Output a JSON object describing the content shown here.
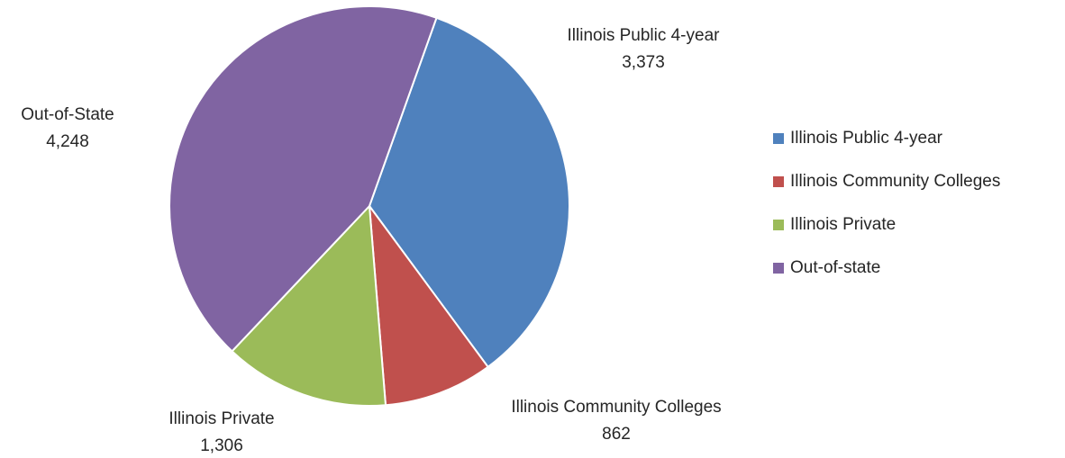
{
  "chart_data": {
    "type": "pie",
    "title": "",
    "slices": [
      {
        "name": "Illinois Public 4-year",
        "value": 3373,
        "label": "Illinois Public 4-year",
        "value_label": "3,373",
        "color": "#4F81BD"
      },
      {
        "name": "Illinois Community Colleges",
        "value": 862,
        "label": "Illinois Community Colleges",
        "value_label": "862",
        "color": "#C0504D"
      },
      {
        "name": "Illinois Private",
        "value": 1306,
        "label": "Illinois Private",
        "value_label": "1,306",
        "color": "#9BBB59"
      },
      {
        "name": "Out-of-state",
        "value": 4248,
        "label": "Out-of-State",
        "value_label": "4,248",
        "color": "#8064A2"
      }
    ],
    "legend": {
      "position": "right",
      "entries": [
        "Illinois Public 4-year",
        "Illinois Community Colleges",
        "Illinois Private",
        "Out-of-state"
      ]
    }
  }
}
